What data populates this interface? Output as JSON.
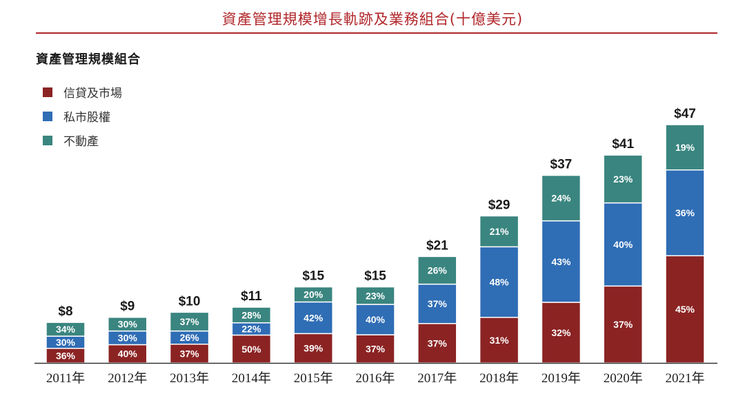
{
  "header": {
    "title": "資產管理規模增長軌跡及業務組合(十億美元)",
    "subtitle": "資產管理規模組合"
  },
  "chart_data": {
    "type": "bar",
    "stacked": true,
    "title": "資產管理規模增長軌跡及業務組合(十億美元)",
    "subtitle": "資產管理規模組合",
    "xlabel": "",
    "ylabel": "",
    "unit": "十億美元",
    "grid": false,
    "legend_position": "top-left",
    "categories": [
      "2011年",
      "2012年",
      "2013年",
      "2014年",
      "2015年",
      "2016年",
      "2017年",
      "2018年",
      "2019年",
      "2020年",
      "2021年"
    ],
    "totals": [
      8,
      9,
      10,
      11,
      15,
      15,
      21,
      29,
      37,
      41,
      47
    ],
    "total_labels": [
      "$8",
      "$9",
      "$10",
      "$11",
      "$15",
      "$15",
      "$21",
      "$29",
      "$37",
      "$41",
      "$47"
    ],
    "ylim": [
      0,
      47
    ],
    "series": [
      {
        "name": "信貸及市場",
        "color": "#8b2323",
        "values_pct": [
          36,
          40,
          37,
          50,
          39,
          37,
          37,
          31,
          32,
          37,
          45
        ]
      },
      {
        "name": "私市股權",
        "color": "#2f6db5",
        "values_pct": [
          30,
          30,
          26,
          22,
          42,
          40,
          37,
          48,
          43,
          40,
          36
        ]
      },
      {
        "name": "不動產",
        "color": "#3a857f",
        "values_pct": [
          34,
          30,
          37,
          28,
          20,
          23,
          26,
          21,
          24,
          23,
          19
        ]
      }
    ]
  },
  "legend": [
    {
      "label": "信貸及市場",
      "color": "#8b2323"
    },
    {
      "label": "私市股權",
      "color": "#2f6db5"
    },
    {
      "label": "不動產",
      "color": "#3a857f"
    }
  ],
  "colors": {
    "title": "#b0262a",
    "axis": "#333333"
  }
}
